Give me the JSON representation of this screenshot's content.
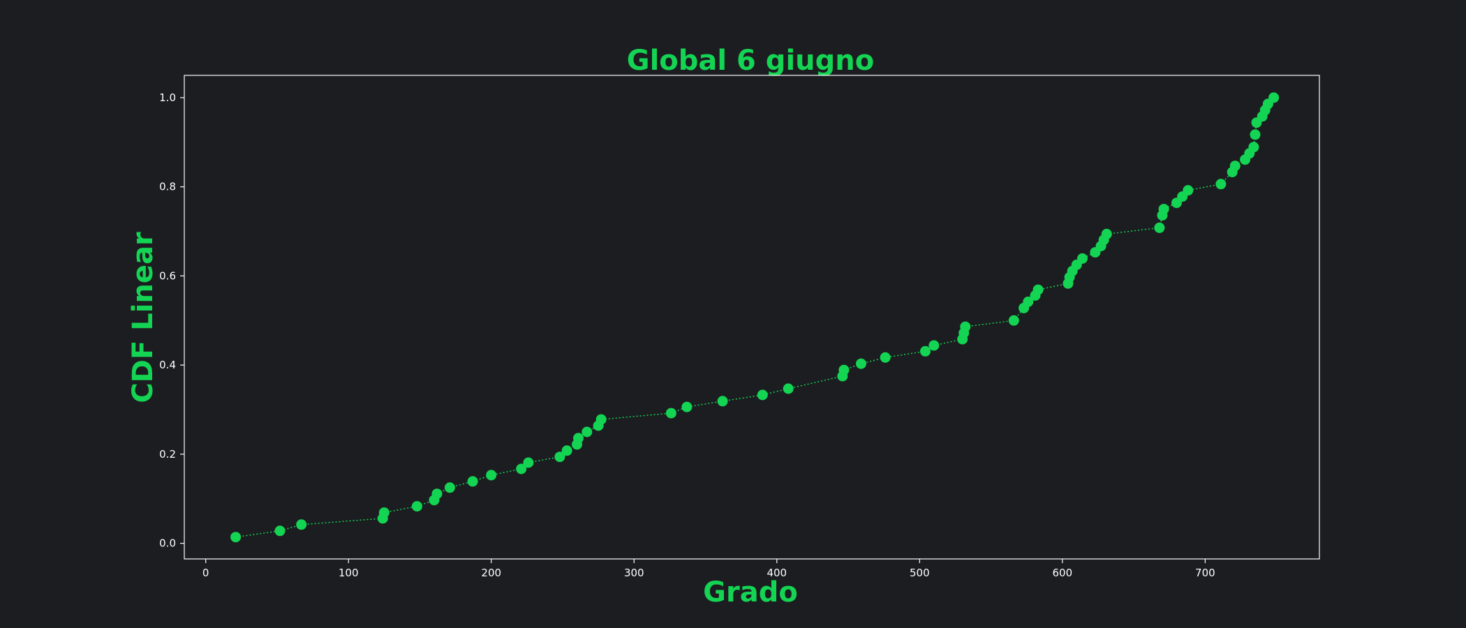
{
  "chart_data": {
    "type": "line",
    "title": "Global 6 giugno",
    "xlabel": "Grado",
    "ylabel": "CDF Linear",
    "xlim": [
      -15,
      780
    ],
    "ylim": [
      -0.035,
      1.05
    ],
    "xticks": [
      0,
      100,
      200,
      300,
      400,
      500,
      600,
      700
    ],
    "yticks": [
      0.0,
      0.2,
      0.4,
      0.6,
      0.8,
      1.0
    ],
    "xtick_labels": [
      "0",
      "100",
      "200",
      "300",
      "400",
      "500",
      "600",
      "700"
    ],
    "ytick_labels": [
      "0.0",
      "0.2",
      "0.4",
      "0.6",
      "0.8",
      "1.0"
    ],
    "grid": false,
    "legend": "none",
    "line_style": "dotted",
    "marker": "circle",
    "colors": {
      "background": "#1c1d21",
      "series": "#14d453",
      "title": "#14d453",
      "axes": "#ffffff",
      "ticks": "#ffffff"
    },
    "series": [
      {
        "x": [
          21,
          52,
          67,
          124,
          125,
          148,
          160,
          162,
          171,
          187,
          200,
          221,
          226,
          248,
          253,
          260,
          261,
          267,
          275,
          277,
          326,
          337,
          362,
          390,
          408,
          446,
          447,
          459,
          476,
          504,
          510,
          530,
          531,
          532,
          566,
          573,
          576,
          581,
          583,
          604,
          605,
          607,
          610,
          614,
          623,
          627,
          629,
          631,
          668,
          670,
          671,
          680,
          684,
          688,
          711,
          719,
          721,
          728,
          731,
          734,
          735,
          736,
          740,
          742,
          744,
          748
        ],
        "y": [
          0.014,
          0.028,
          0.042,
          0.056,
          0.069,
          0.083,
          0.097,
          0.111,
          0.125,
          0.139,
          0.153,
          0.167,
          0.181,
          0.194,
          0.208,
          0.222,
          0.236,
          0.25,
          0.264,
          0.278,
          0.292,
          0.306,
          0.319,
          0.333,
          0.347,
          0.375,
          0.389,
          0.403,
          0.417,
          0.431,
          0.444,
          0.458,
          0.472,
          0.486,
          0.5,
          0.528,
          0.542,
          0.556,
          0.569,
          0.583,
          0.597,
          0.611,
          0.625,
          0.639,
          0.653,
          0.667,
          0.681,
          0.694,
          0.708,
          0.736,
          0.75,
          0.764,
          0.778,
          0.792,
          0.806,
          0.833,
          0.847,
          0.861,
          0.875,
          0.889,
          0.917,
          0.944,
          0.958,
          0.972,
          0.986,
          1.0
        ]
      }
    ]
  }
}
